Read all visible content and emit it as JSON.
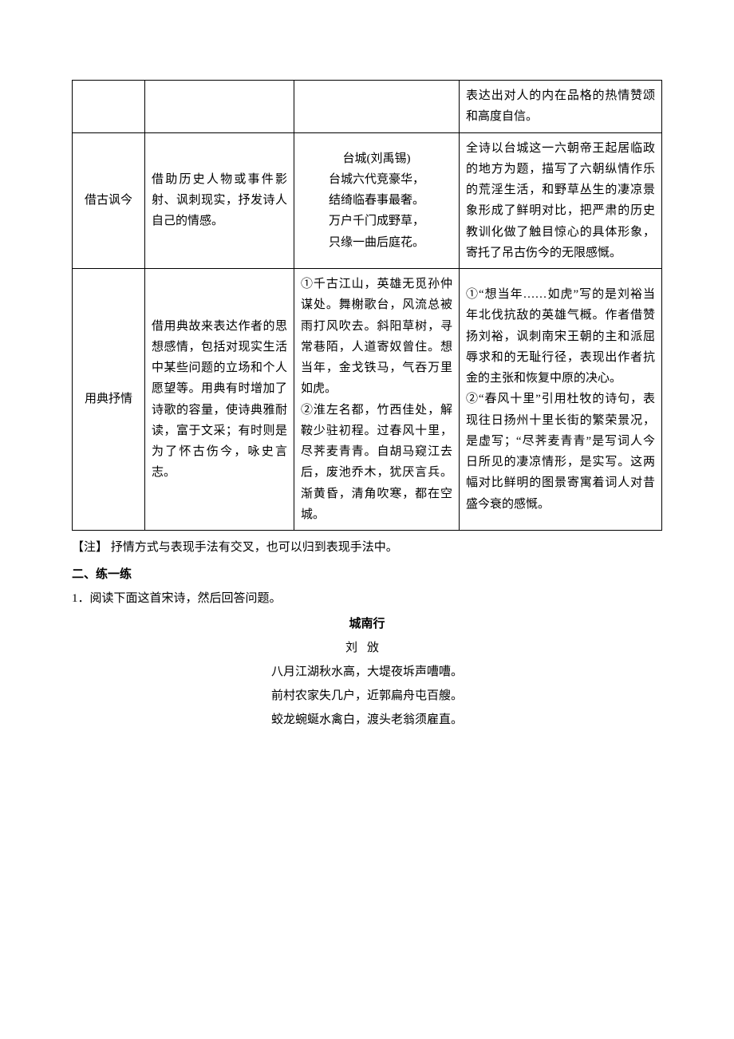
{
  "table": {
    "row0": {
      "c4": "表达出对人的内在品格的热情赞颂和高度自信。"
    },
    "row1": {
      "c1": "借古讽今",
      "c2": "借助历史人物或事件影射、讽刺现实，抒发诗人自己的情感。",
      "c3_title": "台城(刘禹锡)",
      "c3_l1": "台城六代竞豪华，",
      "c3_l2": "结绮临春事最奢。",
      "c3_l3": "万户千门成野草，",
      "c3_l4": "只缘一曲后庭花。",
      "c4": "全诗以台城这一六朝帝王起居临政的地方为题，描写了六朝纵情作乐的荒淫生活，和野草丛生的凄凉景象形成了鲜明对比，把严肃的历史教训化做了触目惊心的具体形象，寄托了吊古伤今的无限感慨。"
    },
    "row2": {
      "c1": "用典抒情",
      "c2": "借用典故来表达作者的思想感情，包括对现实生活中某些问题的立场和个人愿望等。用典有时增加了诗歌的容量，使诗典雅耐读，富于文采；有时则是为了怀古伤今，咏史言志。",
      "c3": "①千古江山，英雄无觅孙仲谋处。舞榭歌台，风流总被雨打风吹去。斜阳草树，寻常巷陌，人道寄奴曾住。想当年，金戈铁马，气吞万里如虎。\n②淮左名都，竹西佳处，解鞍少驻初程。过春风十里，尽荠麦青青。自胡马窥江去后，废池乔木，犹厌言兵。渐黄昏，清角吹寒，都在空城。",
      "c4": "①“想当年……如虎”写的是刘裕当年北伐抗敌的英雄气概。作者借赞扬刘裕，讽刺南宋王朝的主和派屈辱求和的无耻行径，表现出作者抗金的主张和恢复中原的决心。\n②“春风十里”引用杜牧的诗句，表现往日扬州十里长街的繁荣景况，是虚写；“尽荠麦青青”是写词人今日所见的凄凉情形，是实写。这两幅对比鲜明的图景寄寓着词人对昔盛今衰的感慨。"
    }
  },
  "note": {
    "label": "【注】",
    "text": "抒情方式与表现手法有交叉，也可以归到表现手法中。"
  },
  "section": "二、练一练",
  "question": "1．阅读下面这首宋诗，然后回答问题。",
  "poem": {
    "title": "城南行",
    "author": "刘攽",
    "l1": "八月江湖秋水高，大堤夜坼声嘈嘈。",
    "l2": "前村农家失几户，近郭扁舟屯百艘。",
    "l3": "蛟龙蜿蜒水禽白，渡头老翁须雇直。"
  }
}
